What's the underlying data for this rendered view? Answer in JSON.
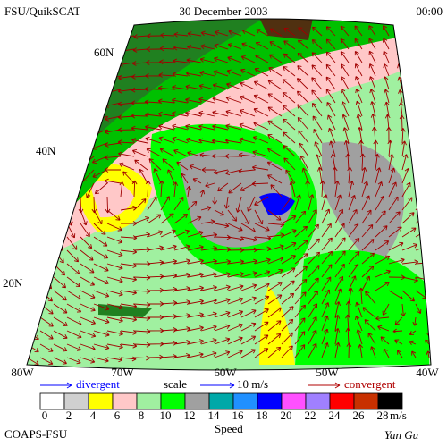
{
  "header": {
    "left": "FSU/QuikSCAT",
    "date": "30 December 2003",
    "time": "00:00"
  },
  "map": {
    "lat_labels": [
      "60N",
      "40N",
      "20N"
    ],
    "lon_labels": [
      "80W",
      "70W",
      "60W",
      "50W",
      "40W"
    ]
  },
  "legend": {
    "divergent": "divergent",
    "scale": "scale",
    "scale_value": "10 m/s",
    "convergent": "convergent"
  },
  "colorbar": {
    "labels": [
      "0",
      "2",
      "4",
      "6",
      "8",
      "10",
      "12",
      "14",
      "16",
      "18",
      "20",
      "22",
      "24",
      "26",
      "28"
    ],
    "colors": [
      "#ffffff",
      "#d0d0d0",
      "#ffff00",
      "#ffc8c8",
      "#a0f0a0",
      "#00ff00",
      "#a0a0a0",
      "#00a8a8",
      "#2090ff",
      "#0000ff",
      "#ff50ff",
      "#a080ff",
      "#ff0000",
      "#c83000",
      "#000000"
    ],
    "unit": "m/s",
    "title": "Speed"
  },
  "footer": {
    "left": "COAPS-FSU",
    "right": "Yan Gu"
  }
}
